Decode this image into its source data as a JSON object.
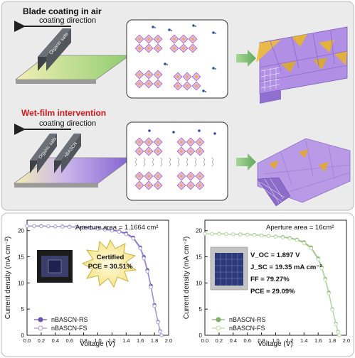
{
  "top_panel": {
    "row1": {
      "title": "Blade coating in air",
      "direction_label": "coating direction",
      "blade_label": "Organic salts"
    },
    "row2": {
      "title": "Wet-film intervention",
      "direction_label": "coating direction",
      "blade1_label": "Organic salts",
      "blade2_label": "nBASCN"
    }
  },
  "chart_data": [
    {
      "type": "line",
      "annotation": "Aperture area = 1.1664 cm²",
      "inset_callout": "Certified PCE = 30.51%",
      "xlabel": "Voltage (V)",
      "ylabel": "Current density (mA cm⁻²)",
      "xlim": [
        0.0,
        2.0
      ],
      "ylim": [
        0,
        22
      ],
      "xticks": [
        "0.0",
        "0.2",
        "0.4",
        "0.6",
        "0.8",
        "1.0",
        "1.2",
        "1.4",
        "1.6",
        "1.8",
        "2.0"
      ],
      "yticks": [
        "0",
        "5",
        "10",
        "15",
        "20"
      ],
      "legend_position": "bottom-left",
      "series": [
        {
          "name": "nBASCN-RS",
          "color": "#6a55b3",
          "marker": "filled-circle",
          "x": [
            0.0,
            0.1,
            0.2,
            0.3,
            0.4,
            0.5,
            0.6,
            0.7,
            0.8,
            0.9,
            1.0,
            1.1,
            1.2,
            1.3,
            1.4,
            1.5,
            1.6,
            1.65,
            1.7,
            1.75,
            1.8,
            1.85,
            1.88,
            1.9
          ],
          "y": [
            20.9,
            20.9,
            20.9,
            20.85,
            20.8,
            20.8,
            20.75,
            20.7,
            20.6,
            20.5,
            20.4,
            20.3,
            20.1,
            19.9,
            19.5,
            18.7,
            16.8,
            15.0,
            12.5,
            9.5,
            5.8,
            2.6,
            0.8,
            0.0
          ]
        },
        {
          "name": "nBASCN-FS",
          "color": "#a79ad6",
          "marker": "open-circle",
          "x": [
            0.0,
            0.1,
            0.2,
            0.3,
            0.4,
            0.5,
            0.6,
            0.7,
            0.8,
            0.9,
            1.0,
            1.1,
            1.2,
            1.3,
            1.4,
            1.5,
            1.6,
            1.65,
            1.7,
            1.75,
            1.8,
            1.85,
            1.88,
            1.9
          ],
          "y": [
            20.9,
            20.9,
            20.85,
            20.85,
            20.8,
            20.75,
            20.7,
            20.65,
            20.55,
            20.45,
            20.35,
            20.2,
            20.0,
            19.8,
            19.3,
            18.5,
            16.6,
            14.7,
            12.2,
            9.2,
            5.6,
            2.5,
            0.7,
            0.0
          ]
        }
      ]
    },
    {
      "type": "line",
      "annotation": "Aperture area = 16cm²",
      "inset_metrics": [
        "V_OC = 1.897 V",
        "J_SC = 19.35 mA cm⁻²",
        "FF = 79.27%",
        "PCE = 29.09%"
      ],
      "xlabel": "Voltage (V)",
      "ylabel": "Current density (mA cm⁻²)",
      "xlim": [
        0.0,
        2.0
      ],
      "ylim": [
        0,
        22
      ],
      "xticks": [
        "0.0",
        "0.2",
        "0.4",
        "0.6",
        "0.8",
        "1.0",
        "1.2",
        "1.4",
        "1.6",
        "1.8",
        "2.0"
      ],
      "yticks": [
        "0",
        "5",
        "10",
        "15",
        "20"
      ],
      "legend_position": "bottom-left",
      "series": [
        {
          "name": "nBASCN-RS",
          "color": "#7fb069",
          "marker": "filled-circle",
          "x": [
            0.0,
            0.1,
            0.2,
            0.3,
            0.4,
            0.5,
            0.6,
            0.7,
            0.8,
            0.9,
            1.0,
            1.1,
            1.2,
            1.3,
            1.4,
            1.5,
            1.6,
            1.65,
            1.7,
            1.75,
            1.8,
            1.85,
            1.88,
            1.9
          ],
          "y": [
            19.4,
            19.4,
            19.4,
            19.35,
            19.3,
            19.3,
            19.25,
            19.2,
            19.1,
            19.0,
            18.9,
            18.8,
            18.6,
            18.3,
            17.8,
            16.8,
            14.7,
            13.0,
            10.8,
            8.2,
            5.0,
            2.2,
            0.7,
            0.0
          ]
        },
        {
          "name": "nBASCN-FS",
          "color": "#b9d8a6",
          "marker": "open-circle",
          "x": [
            0.0,
            0.1,
            0.2,
            0.3,
            0.4,
            0.5,
            0.6,
            0.7,
            0.8,
            0.9,
            1.0,
            1.1,
            1.2,
            1.3,
            1.4,
            1.5,
            1.6,
            1.65,
            1.7,
            1.75,
            1.8,
            1.85,
            1.88,
            1.9
          ],
          "y": [
            19.4,
            19.4,
            19.35,
            19.35,
            19.3,
            19.25,
            19.2,
            19.15,
            19.05,
            18.95,
            18.85,
            18.7,
            18.5,
            18.2,
            17.6,
            16.6,
            14.5,
            12.8,
            10.6,
            8.0,
            4.9,
            2.1,
            0.6,
            0.0
          ]
        }
      ]
    }
  ]
}
